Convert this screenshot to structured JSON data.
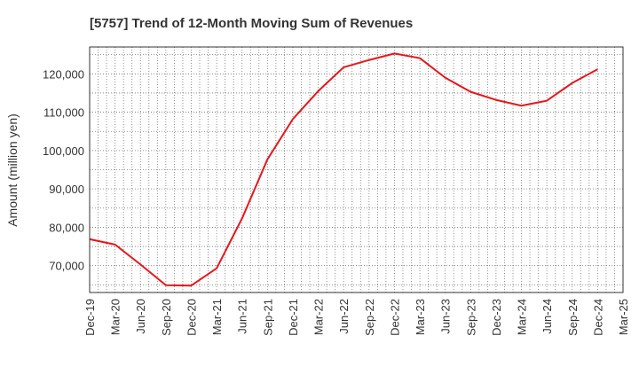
{
  "chart_data": {
    "type": "line",
    "title": "[5757]  Trend of 12-Month Moving Sum of Revenues",
    "ylabel": "Amount (million yen)",
    "xlabel": "",
    "x_tick_labels": [
      "Dec-19",
      "Mar-20",
      "Jun-20",
      "Sep-20",
      "Dec-20",
      "Mar-21",
      "Jun-21",
      "Sep-21",
      "Dec-21",
      "Mar-22",
      "Jun-22",
      "Sep-22",
      "Dec-22",
      "Mar-23",
      "Jun-23",
      "Sep-23",
      "Dec-23",
      "Mar-24",
      "Jun-24",
      "Sep-24",
      "Dec-24",
      "Mar-25"
    ],
    "y_ticks": [
      70000,
      80000,
      90000,
      100000,
      110000,
      120000
    ],
    "y_tick_labels": [
      "70,000",
      "80,000",
      "90,000",
      "100,000",
      "110,000",
      "120,000"
    ],
    "ylim": [
      63000,
      127000
    ],
    "grid": true,
    "series": [
      {
        "color": "#e8161b",
        "x": [
          "Dec-19",
          "Mar-20",
          "Jun-20",
          "Sep-20",
          "Dec-20",
          "Mar-21",
          "Jun-21",
          "Sep-21",
          "Dec-21",
          "Mar-22",
          "Jun-22",
          "Sep-22",
          "Dec-22",
          "Mar-23",
          "Jun-23",
          "Sep-23",
          "Dec-23",
          "Mar-24",
          "Jun-24",
          "Sep-24",
          "Dec-24"
        ],
        "values": [
          76900,
          75500,
          70300,
          64900,
          64800,
          69300,
          82300,
          97700,
          108200,
          115500,
          121700,
          123600,
          125300,
          124100,
          119000,
          115300,
          113200,
          111700,
          113000,
          117600,
          121200
        ]
      }
    ]
  }
}
